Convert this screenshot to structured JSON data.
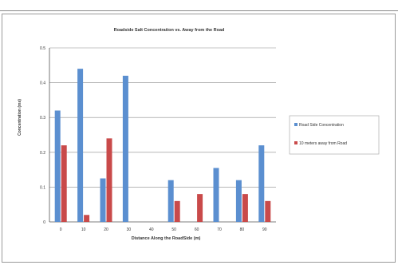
{
  "chart_data": {
    "type": "bar",
    "title": "Roadside Salt Concentration vs. Away from the Road",
    "xlabel": "Distance Along the RoadSide (m)",
    "ylabel": "Concentration (ms)",
    "categories": [
      "0",
      "10",
      "20",
      "30",
      "40",
      "50",
      "60",
      "70",
      "80",
      "90"
    ],
    "series": [
      {
        "name": "Road Side Concentration",
        "color": "#5b8fd0",
        "values": [
          0.32,
          0.44,
          0.125,
          0.42,
          0,
          0.12,
          0,
          0.155,
          0.12,
          0.22
        ]
      },
      {
        "name": "10 meters away from Road",
        "color": "#c94a4a",
        "values": [
          0.22,
          0.02,
          0.24,
          0,
          0,
          0.06,
          0.08,
          0,
          0.08,
          0.06
        ]
      }
    ],
    "ylim": [
      0,
      0.5
    ],
    "yticks": [
      "0",
      "0.1",
      "0.2",
      "0.3",
      "0.4",
      "0.5"
    ],
    "grid": true,
    "legend": "right"
  }
}
